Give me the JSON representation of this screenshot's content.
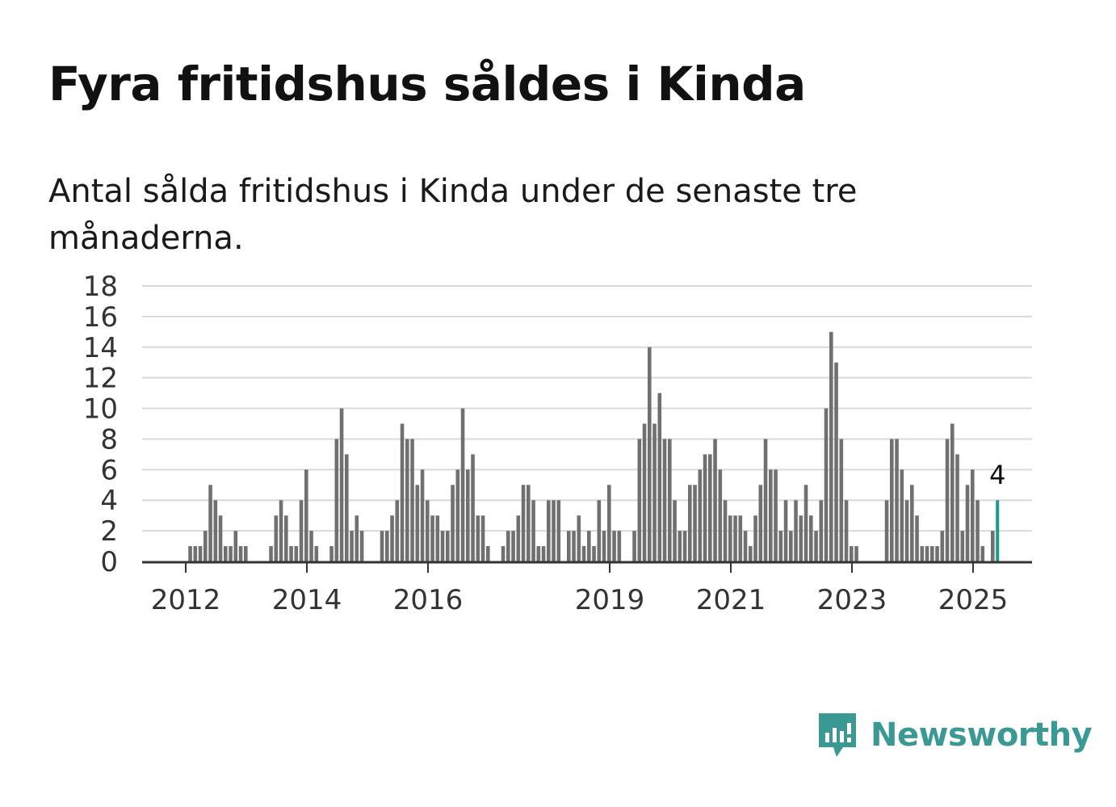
{
  "header": {
    "title": "Fyra fritidshus såldes i Kinda",
    "subtitle": "Antal sålda fritidshus i Kinda under de senaste tre månaderna."
  },
  "brand": {
    "name": "Newsworthy",
    "icon": "newsworthy-logo-icon"
  },
  "colors": {
    "bar": "#707070",
    "highlight": "#1a9a8c",
    "grid": "#d9d9d9",
    "axis": "#333333"
  },
  "chart_data": {
    "type": "bar",
    "title": "Fyra fritidshus såldes i Kinda",
    "subtitle": "Antal sålda fritidshus i Kinda under de senaste tre månaderna.",
    "xlabel": "",
    "ylabel": "",
    "ylim": [
      0,
      18
    ],
    "yticks": [
      "0",
      "2",
      "4",
      "6",
      "8",
      "10",
      "12",
      "14",
      "16",
      "18"
    ],
    "xticks": [
      "2012",
      "2014",
      "2016",
      "2019",
      "2021",
      "2023",
      "2025"
    ],
    "grid": true,
    "highlight_last": true,
    "last_value_label": "4",
    "values": [
      0,
      1,
      1,
      1,
      2,
      5,
      4,
      3,
      1,
      1,
      2,
      1,
      1,
      0,
      0,
      0,
      0,
      1,
      3,
      4,
      3,
      1,
      1,
      4,
      6,
      2,
      1,
      0,
      0,
      1,
      8,
      10,
      7,
      2,
      3,
      2,
      0,
      0,
      0,
      2,
      2,
      3,
      4,
      9,
      8,
      8,
      5,
      6,
      4,
      3,
      3,
      2,
      2,
      5,
      6,
      10,
      6,
      7,
      3,
      3,
      1,
      0,
      0,
      1,
      2,
      2,
      3,
      5,
      5,
      4,
      1,
      1,
      4,
      4,
      4,
      0,
      2,
      2,
      3,
      1,
      2,
      1,
      4,
      2,
      5,
      2,
      2,
      0,
      0,
      2,
      8,
      9,
      14,
      9,
      11,
      8,
      8,
      4,
      2,
      2,
      5,
      5,
      6,
      7,
      7,
      8,
      6,
      4,
      3,
      3,
      3,
      2,
      1,
      3,
      5,
      8,
      6,
      6,
      2,
      4,
      2,
      4,
      3,
      5,
      3,
      2,
      4,
      10,
      15,
      13,
      8,
      4,
      1,
      1,
      0,
      0,
      0,
      0,
      0,
      4,
      8,
      8,
      6,
      4,
      5,
      3,
      1,
      1,
      1,
      1,
      2,
      8,
      9,
      7,
      2,
      5,
      6,
      4,
      1,
      0,
      2,
      4
    ]
  }
}
